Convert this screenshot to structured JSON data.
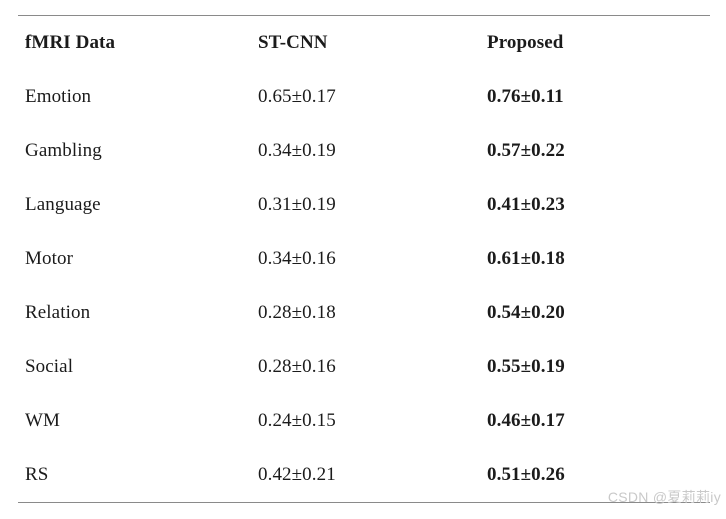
{
  "colors": {
    "background": "#ffffff",
    "text": "#1b1b1b",
    "rule": "#8a8a8a",
    "watermark": "#c9c9c9"
  },
  "table": {
    "headers": {
      "col1": "fMRI Data",
      "col2": "ST-CNN",
      "col3": "Proposed"
    },
    "rows": [
      {
        "data": "Emotion",
        "st_cnn": "0.65±0.17",
        "proposed": "0.76±0.11"
      },
      {
        "data": "Gambling",
        "st_cnn": "0.34±0.19",
        "proposed": "0.57±0.22"
      },
      {
        "data": "Language",
        "st_cnn": "0.31±0.19",
        "proposed": "0.41±0.23"
      },
      {
        "data": "Motor",
        "st_cnn": "0.34±0.16",
        "proposed": "0.61±0.18"
      },
      {
        "data": "Relation",
        "st_cnn": "0.28±0.18",
        "proposed": "0.54±0.20"
      },
      {
        "data": "Social",
        "st_cnn": "0.28±0.16",
        "proposed": "0.55±0.19"
      },
      {
        "data": "WM",
        "st_cnn": "0.24±0.15",
        "proposed": "0.46±0.17"
      },
      {
        "data": "RS",
        "st_cnn": "0.42±0.21",
        "proposed": "0.51±0.26"
      }
    ]
  },
  "watermark": {
    "text": "CSDN @夏莉莉iy"
  }
}
